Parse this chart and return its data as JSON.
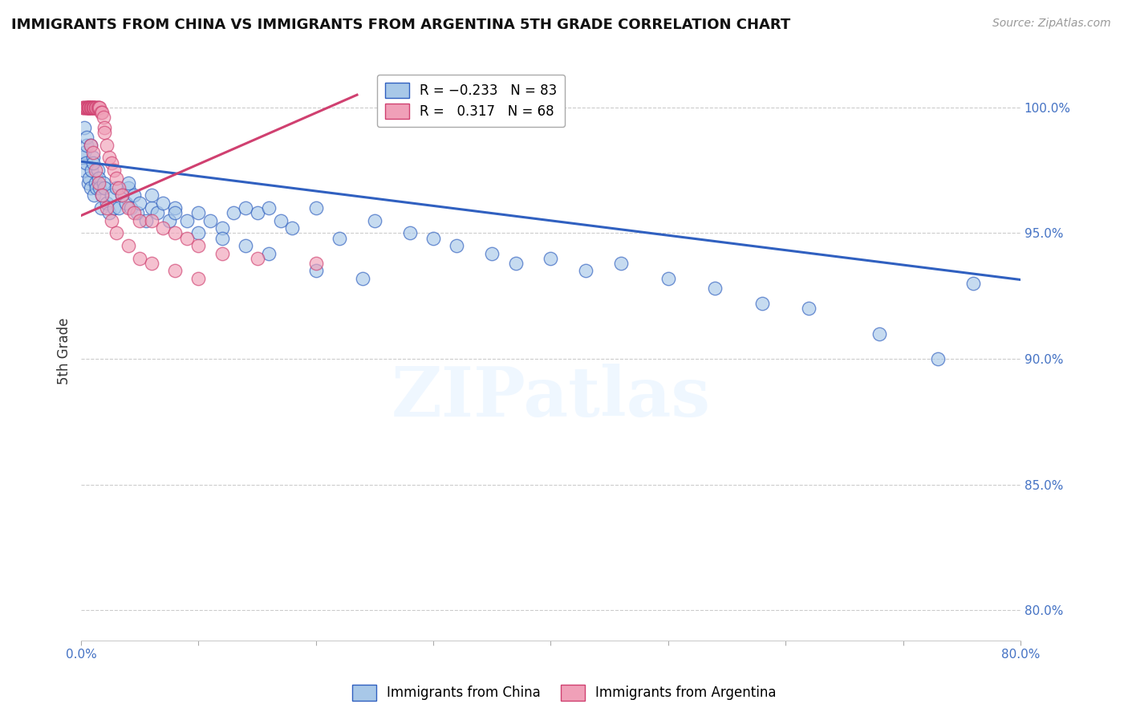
{
  "title": "IMMIGRANTS FROM CHINA VS IMMIGRANTS FROM ARGENTINA 5TH GRADE CORRELATION CHART",
  "source": "Source: ZipAtlas.com",
  "ylabel": "5th Grade",
  "ytick_labels": [
    "100.0%",
    "95.0%",
    "90.0%",
    "85.0%",
    "80.0%"
  ],
  "ytick_values": [
    1.0,
    0.95,
    0.9,
    0.85,
    0.8
  ],
  "xlim": [
    0.0,
    0.8
  ],
  "ylim": [
    0.788,
    1.018
  ],
  "china_color": "#a8c8e8",
  "argentina_color": "#f0a0b8",
  "china_line_color": "#3060c0",
  "argentina_line_color": "#d04070",
  "watermark": "ZIPatlas",
  "china_scatter_x": [
    0.001,
    0.002,
    0.003,
    0.004,
    0.005,
    0.006,
    0.007,
    0.008,
    0.009,
    0.01,
    0.011,
    0.012,
    0.013,
    0.014,
    0.015,
    0.016,
    0.017,
    0.018,
    0.019,
    0.02,
    0.022,
    0.024,
    0.026,
    0.028,
    0.03,
    0.032,
    0.035,
    0.038,
    0.04,
    0.042,
    0.045,
    0.048,
    0.05,
    0.055,
    0.06,
    0.065,
    0.07,
    0.075,
    0.08,
    0.09,
    0.1,
    0.11,
    0.12,
    0.13,
    0.14,
    0.15,
    0.16,
    0.17,
    0.18,
    0.2,
    0.22,
    0.25,
    0.28,
    0.3,
    0.32,
    0.35,
    0.37,
    0.4,
    0.43,
    0.46,
    0.5,
    0.54,
    0.58,
    0.62,
    0.68,
    0.73,
    0.76,
    0.04,
    0.06,
    0.08,
    0.1,
    0.12,
    0.14,
    0.16,
    0.2,
    0.24,
    0.003,
    0.005,
    0.008,
    0.01
  ],
  "china_scatter_y": [
    0.98,
    0.975,
    0.982,
    0.978,
    0.985,
    0.97,
    0.972,
    0.968,
    0.975,
    0.98,
    0.965,
    0.97,
    0.968,
    0.975,
    0.972,
    0.968,
    0.96,
    0.965,
    0.97,
    0.968,
    0.962,
    0.958,
    0.965,
    0.96,
    0.968,
    0.96,
    0.965,
    0.962,
    0.968,
    0.96,
    0.965,
    0.958,
    0.962,
    0.955,
    0.96,
    0.958,
    0.962,
    0.955,
    0.96,
    0.955,
    0.958,
    0.955,
    0.952,
    0.958,
    0.96,
    0.958,
    0.96,
    0.955,
    0.952,
    0.96,
    0.948,
    0.955,
    0.95,
    0.948,
    0.945,
    0.942,
    0.938,
    0.94,
    0.935,
    0.938,
    0.932,
    0.928,
    0.922,
    0.92,
    0.91,
    0.9,
    0.93,
    0.97,
    0.965,
    0.958,
    0.95,
    0.948,
    0.945,
    0.942,
    0.935,
    0.932,
    0.992,
    0.988,
    0.985,
    0.978
  ],
  "argentina_scatter_x": [
    0.001,
    0.002,
    0.003,
    0.004,
    0.005,
    0.005,
    0.005,
    0.006,
    0.006,
    0.006,
    0.007,
    0.007,
    0.007,
    0.008,
    0.008,
    0.008,
    0.009,
    0.009,
    0.01,
    0.01,
    0.01,
    0.011,
    0.011,
    0.012,
    0.012,
    0.013,
    0.014,
    0.015,
    0.015,
    0.016,
    0.017,
    0.018,
    0.019,
    0.02,
    0.02,
    0.022,
    0.024,
    0.026,
    0.028,
    0.03,
    0.032,
    0.035,
    0.04,
    0.045,
    0.05,
    0.06,
    0.07,
    0.08,
    0.09,
    0.1,
    0.12,
    0.15,
    0.2,
    0.008,
    0.01,
    0.012,
    0.015,
    0.018,
    0.022,
    0.026,
    0.03,
    0.04,
    0.05,
    0.06,
    0.08,
    0.1
  ],
  "argentina_scatter_y": [
    1.0,
    1.0,
    1.0,
    1.0,
    1.0,
    1.0,
    1.0,
    1.0,
    1.0,
    1.0,
    1.0,
    1.0,
    1.0,
    1.0,
    1.0,
    1.0,
    1.0,
    1.0,
    1.0,
    1.0,
    1.0,
    1.0,
    1.0,
    1.0,
    1.0,
    1.0,
    1.0,
    1.0,
    1.0,
    1.0,
    0.998,
    0.998,
    0.996,
    0.992,
    0.99,
    0.985,
    0.98,
    0.978,
    0.975,
    0.972,
    0.968,
    0.965,
    0.96,
    0.958,
    0.955,
    0.955,
    0.952,
    0.95,
    0.948,
    0.945,
    0.942,
    0.94,
    0.938,
    0.985,
    0.982,
    0.975,
    0.97,
    0.965,
    0.96,
    0.955,
    0.95,
    0.945,
    0.94,
    0.938,
    0.935,
    0.932
  ],
  "china_trend_x": [
    0.0,
    0.8
  ],
  "china_trend_y": [
    0.9785,
    0.9315
  ],
  "argentina_trend_x": [
    0.0,
    0.235
  ],
  "argentina_trend_y": [
    0.957,
    1.005
  ],
  "grid_color": "#cccccc",
  "background_color": "#ffffff",
  "tick_color": "#4472c4",
  "title_fontsize": 13,
  "source_fontsize": 10,
  "axis_label_fontsize": 12,
  "tick_fontsize": 11,
  "legend_fontsize": 12
}
